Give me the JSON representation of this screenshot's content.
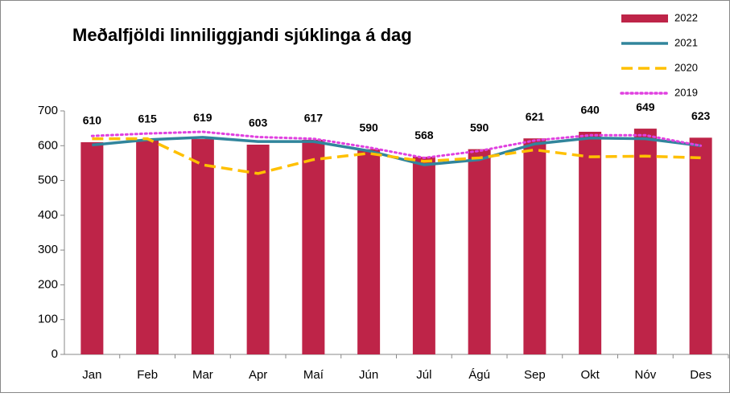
{
  "chart_data": {
    "type": "bar-line",
    "title": "Meðalfjöldi linniliggjandi sjúklinga á dag",
    "categories": [
      "Jan",
      "Feb",
      "Mar",
      "Apr",
      "Maí",
      "Jún",
      "Júl",
      "Ágú",
      "Sep",
      "Okt",
      "Nóv",
      "Des"
    ],
    "series": [
      {
        "name": "2022",
        "type": "bar",
        "color": "#be2448",
        "values": [
          610,
          615,
          619,
          603,
          617,
          590,
          568,
          590,
          621,
          640,
          649,
          623
        ]
      },
      {
        "name": "2021",
        "type": "line",
        "style": "solid",
        "color": "#31859c",
        "values": [
          602,
          617,
          624,
          612,
          612,
          585,
          545,
          560,
          605,
          622,
          620,
          600
        ]
      },
      {
        "name": "2020",
        "type": "line",
        "style": "dashed",
        "color": "#ffc000",
        "values": [
          620,
          620,
          545,
          520,
          560,
          578,
          555,
          565,
          588,
          568,
          570,
          565
        ]
      },
      {
        "name": "2019",
        "type": "line",
        "style": "dotted",
        "color": "#e040e0",
        "values": [
          628,
          635,
          640,
          625,
          620,
          595,
          565,
          585,
          615,
          630,
          630,
          600
        ]
      }
    ],
    "ylim": [
      0,
      700
    ],
    "yticks": [
      0,
      100,
      200,
      300,
      400,
      500,
      600,
      700
    ],
    "grid": false,
    "legend": "top-right"
  }
}
